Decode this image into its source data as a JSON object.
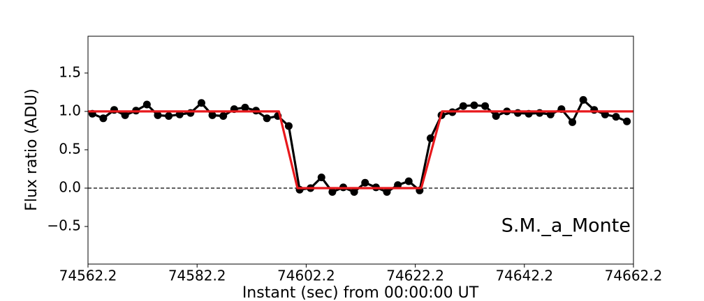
{
  "chart_data": {
    "type": "line",
    "xlabel": "Instant (sec) from 00:00:00 UT",
    "ylabel": "Flux ratio (ADU)",
    "annotation": "S.M._a_Monte",
    "xlim": [
      74562.2,
      74662.2
    ],
    "xticks": [
      74562.2,
      74582.2,
      74602.2,
      74622.2,
      74642.2,
      74662.2
    ],
    "ylim": [
      -0.99,
      1.98
    ],
    "yticks": [
      {
        "value": -0.5,
        "label": "−0.5"
      },
      {
        "value": 0,
        "label": "0.0"
      },
      0.5,
      {
        "value": 1,
        "label": "1.0"
      },
      1.5
    ],
    "hlines": [
      0
    ],
    "series": [
      {
        "color": "#000000",
        "marker": true,
        "x": [
          74563,
          74565,
          74567,
          74569,
          74571,
          74573,
          74575,
          74577,
          74579,
          74581,
          74583,
          74585,
          74587,
          74589,
          74591,
          74593,
          74595,
          74597,
          74599,
          74601,
          74603,
          74605,
          74607,
          74609,
          74611,
          74613,
          74615,
          74617,
          74619,
          74621,
          74623,
          74625,
          74627,
          74629,
          74631,
          74633,
          74635,
          74637,
          74639,
          74641,
          74643,
          74645,
          74647,
          74649,
          74651,
          74653,
          74655,
          74657,
          74659,
          74661
        ],
        "values": [
          0.97,
          0.91,
          1.02,
          0.95,
          1.01,
          1.09,
          0.95,
          0.94,
          0.96,
          0.98,
          1.11,
          0.95,
          0.94,
          1.03,
          1.05,
          1.01,
          0.91,
          0.94,
          0.81,
          -0.02,
          0.0,
          0.14,
          -0.05,
          0.01,
          -0.05,
          0.07,
          0.01,
          -0.05,
          0.04,
          0.09,
          -0.03,
          0.65,
          0.95,
          0.99,
          1.07,
          1.08,
          1.07,
          0.94,
          1.0,
          0.98,
          0.97,
          0.98,
          0.96,
          1.03,
          0.86,
          1.15,
          1.02,
          0.96,
          0.93,
          0.87
        ]
      },
      {
        "color": "#e8181c",
        "marker": false,
        "x": [
          74562.2,
          74597.2,
          74600.6,
          74623.3,
          74627.1,
          74662.2
        ],
        "values": [
          1,
          1,
          0,
          0,
          1,
          1
        ]
      }
    ]
  }
}
